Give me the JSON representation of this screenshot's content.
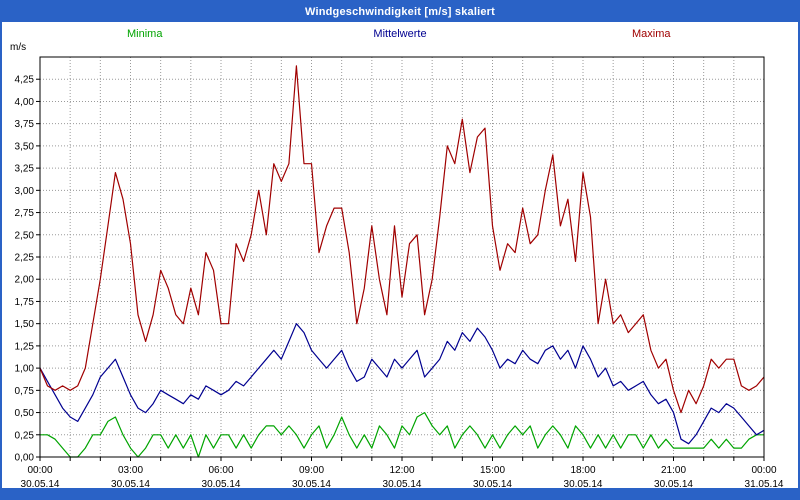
{
  "header": {
    "title": "Windgeschwindigkeit [m/s] skaliert"
  },
  "legend": {
    "minima": "Minima",
    "mittelwerte": "Mittelwerte",
    "maxima": "Maxima"
  },
  "axis": {
    "unit_label": "m/s"
  },
  "colors": {
    "title_bar": "#2a62c6",
    "border": "#2a62c6",
    "minima": "#00a400",
    "mittelwerte": "#000090",
    "maxima": "#a00000",
    "grid": "#9a9a9a",
    "plot_border": "#000000"
  },
  "chart_data": {
    "type": "line",
    "title": "Windgeschwindigkeit [m/s] skaliert",
    "xlabel": "",
    "ylabel": "m/s",
    "ylim": [
      0,
      4.5
    ],
    "ytick_step": 0.25,
    "ytick_labels": [
      "0,00",
      "0,25",
      "0,50",
      "0,75",
      "1,00",
      "1,25",
      "1,50",
      "1,75",
      "2,00",
      "2,25",
      "2,50",
      "2,75",
      "3,00",
      "3,25",
      "3,50",
      "3,75",
      "4,00",
      "4,25"
    ],
    "grid": true,
    "legend_position": "top",
    "x_range_minutes": [
      0,
      1440
    ],
    "minor_x_grid_every_minutes": 60,
    "sample_interval_minutes": 15,
    "x_major_ticks_minutes": [
      0,
      180,
      360,
      540,
      720,
      900,
      1080,
      1260,
      1440
    ],
    "xtick_labels": [
      "00:00",
      "03:00",
      "06:00",
      "09:00",
      "12:00",
      "15:00",
      "18:00",
      "21:00",
      "00:00"
    ],
    "xtick_dates": [
      "30.05.14",
      "30.05.14",
      "30.05.14",
      "30.05.14",
      "30.05.14",
      "30.05.14",
      "30.05.14",
      "30.05.14",
      "31.05.14"
    ],
    "series": [
      {
        "name": "Minima",
        "color": "#00a400",
        "values": [
          0.25,
          0.25,
          0.2,
          0.1,
          0.0,
          0.0,
          0.1,
          0.25,
          0.25,
          0.4,
          0.45,
          0.25,
          0.1,
          0.0,
          0.1,
          0.25,
          0.25,
          0.1,
          0.25,
          0.1,
          0.25,
          0.0,
          0.25,
          0.1,
          0.25,
          0.25,
          0.1,
          0.25,
          0.1,
          0.25,
          0.35,
          0.35,
          0.25,
          0.35,
          0.25,
          0.1,
          0.25,
          0.35,
          0.1,
          0.25,
          0.45,
          0.25,
          0.1,
          0.25,
          0.1,
          0.35,
          0.25,
          0.1,
          0.35,
          0.25,
          0.45,
          0.5,
          0.35,
          0.25,
          0.35,
          0.1,
          0.25,
          0.35,
          0.25,
          0.1,
          0.25,
          0.1,
          0.25,
          0.35,
          0.25,
          0.35,
          0.1,
          0.25,
          0.35,
          0.25,
          0.1,
          0.35,
          0.25,
          0.1,
          0.25,
          0.1,
          0.25,
          0.1,
          0.25,
          0.25,
          0.1,
          0.25,
          0.1,
          0.2,
          0.1,
          0.1,
          0.1,
          0.1,
          0.1,
          0.2,
          0.1,
          0.2,
          0.1,
          0.1,
          0.2,
          0.25,
          0.25
        ]
      },
      {
        "name": "Mittelwerte",
        "color": "#000090",
        "values": [
          1.0,
          0.85,
          0.7,
          0.55,
          0.45,
          0.4,
          0.55,
          0.7,
          0.9,
          1.0,
          1.1,
          0.9,
          0.7,
          0.55,
          0.5,
          0.6,
          0.75,
          0.7,
          0.65,
          0.6,
          0.7,
          0.65,
          0.8,
          0.75,
          0.7,
          0.75,
          0.85,
          0.8,
          0.9,
          1.0,
          1.1,
          1.2,
          1.1,
          1.3,
          1.5,
          1.4,
          1.2,
          1.1,
          1.0,
          1.1,
          1.2,
          1.0,
          0.85,
          0.9,
          1.1,
          1.0,
          0.9,
          1.1,
          1.0,
          1.1,
          1.2,
          0.9,
          1.0,
          1.1,
          1.3,
          1.2,
          1.4,
          1.3,
          1.45,
          1.35,
          1.2,
          1.0,
          1.1,
          1.05,
          1.2,
          1.1,
          1.05,
          1.2,
          1.25,
          1.1,
          1.2,
          1.0,
          1.25,
          1.1,
          0.9,
          1.0,
          0.8,
          0.85,
          0.75,
          0.8,
          0.85,
          0.7,
          0.6,
          0.65,
          0.5,
          0.2,
          0.15,
          0.25,
          0.4,
          0.55,
          0.5,
          0.6,
          0.55,
          0.45,
          0.35,
          0.25,
          0.3
        ]
      },
      {
        "name": "Maxima",
        "color": "#a00000",
        "values": [
          1.0,
          0.8,
          0.75,
          0.8,
          0.75,
          0.8,
          1.0,
          1.5,
          2.0,
          2.6,
          3.2,
          2.9,
          2.4,
          1.6,
          1.3,
          1.6,
          2.1,
          1.9,
          1.6,
          1.5,
          1.9,
          1.6,
          2.3,
          2.1,
          1.5,
          1.5,
          2.4,
          2.2,
          2.5,
          3.0,
          2.5,
          3.3,
          3.1,
          3.3,
          4.4,
          3.3,
          3.3,
          2.3,
          2.6,
          2.8,
          2.8,
          2.3,
          1.5,
          1.9,
          2.6,
          2.0,
          1.6,
          2.6,
          1.8,
          2.4,
          2.5,
          1.6,
          2.0,
          2.7,
          3.5,
          3.3,
          3.8,
          3.2,
          3.6,
          3.7,
          2.6,
          2.1,
          2.4,
          2.3,
          2.8,
          2.4,
          2.5,
          3.0,
          3.4,
          2.6,
          2.9,
          2.2,
          3.2,
          2.7,
          1.5,
          2.0,
          1.5,
          1.6,
          1.4,
          1.5,
          1.6,
          1.2,
          1.0,
          1.1,
          0.75,
          0.5,
          0.75,
          0.6,
          0.8,
          1.1,
          1.0,
          1.1,
          1.1,
          0.8,
          0.75,
          0.8,
          0.9
        ]
      }
    ]
  }
}
